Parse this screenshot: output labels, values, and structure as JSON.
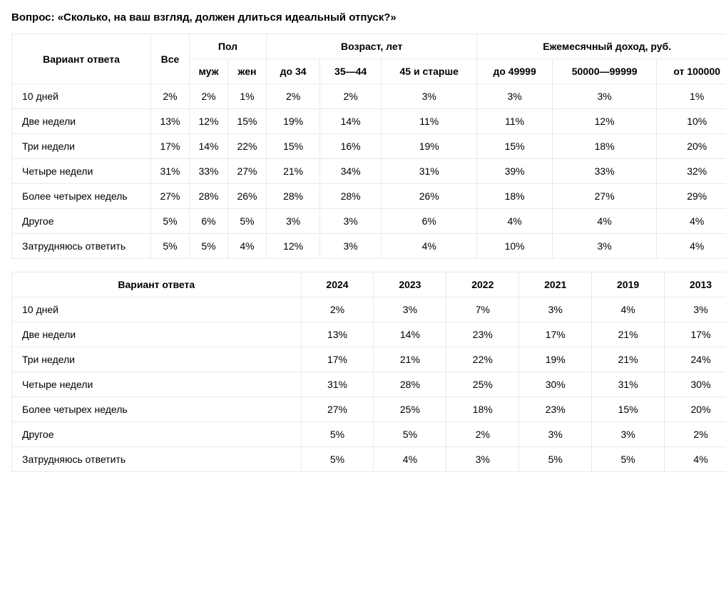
{
  "question": "Вопрос: «Сколько, на ваш взгляд, должен длиться идеальный отпуск?»",
  "table1": {
    "headers": {
      "answer": "Вариант ответа",
      "all": "Все",
      "gender": "Пол",
      "age": "Возраст, лет",
      "income": "Ежемесячный доход, руб.",
      "male": "муж",
      "female": "жен",
      "age1": "до 34",
      "age2": "35—44",
      "age3": "45 и старше",
      "inc1": "до 49999",
      "inc2": "50000—99999",
      "inc3": "от 100000"
    },
    "rows": [
      {
        "label": "10 дней",
        "all": "2%",
        "m": "2%",
        "f": "1%",
        "a1": "2%",
        "a2": "2%",
        "a3": "3%",
        "i1": "3%",
        "i2": "3%",
        "i3": "1%"
      },
      {
        "label": "Две недели",
        "all": "13%",
        "m": "12%",
        "f": "15%",
        "a1": "19%",
        "a2": "14%",
        "a3": "11%",
        "i1": "11%",
        "i2": "12%",
        "i3": "10%"
      },
      {
        "label": "Три недели",
        "all": "17%",
        "m": "14%",
        "f": "22%",
        "a1": "15%",
        "a2": "16%",
        "a3": "19%",
        "i1": "15%",
        "i2": "18%",
        "i3": "20%"
      },
      {
        "label": "Четыре недели",
        "all": "31%",
        "m": "33%",
        "f": "27%",
        "a1": "21%",
        "a2": "34%",
        "a3": "31%",
        "i1": "39%",
        "i2": "33%",
        "i3": "32%"
      },
      {
        "label": "Более четырех недель",
        "all": "27%",
        "m": "28%",
        "f": "26%",
        "a1": "28%",
        "a2": "28%",
        "a3": "26%",
        "i1": "18%",
        "i2": "27%",
        "i3": "29%"
      },
      {
        "label": "Другое",
        "all": "5%",
        "m": "6%",
        "f": "5%",
        "a1": "3%",
        "a2": "3%",
        "a3": "6%",
        "i1": "4%",
        "i2": "4%",
        "i3": "4%"
      },
      {
        "label": "Затрудняюсь ответить",
        "all": "5%",
        "m": "5%",
        "f": "4%",
        "a1": "12%",
        "a2": "3%",
        "a3": "4%",
        "i1": "10%",
        "i2": "3%",
        "i3": "4%"
      }
    ]
  },
  "table2": {
    "headers": {
      "answer": "Вариант ответа",
      "y2024": "2024",
      "y2023": "2023",
      "y2022": "2022",
      "y2021": "2021",
      "y2019": "2019",
      "y2013": "2013"
    },
    "rows": [
      {
        "label": "10 дней",
        "y2024": "2%",
        "y2023": "3%",
        "y2022": "7%",
        "y2021": "3%",
        "y2019": "4%",
        "y2013": "3%"
      },
      {
        "label": "Две недели",
        "y2024": "13%",
        "y2023": "14%",
        "y2022": "23%",
        "y2021": "17%",
        "y2019": "21%",
        "y2013": "17%"
      },
      {
        "label": "Три недели",
        "y2024": "17%",
        "y2023": "21%",
        "y2022": "22%",
        "y2021": "19%",
        "y2019": "21%",
        "y2013": "24%"
      },
      {
        "label": "Четыре недели",
        "y2024": "31%",
        "y2023": "28%",
        "y2022": "25%",
        "y2021": "30%",
        "y2019": "31%",
        "y2013": "30%"
      },
      {
        "label": "Более четырех недель",
        "y2024": "27%",
        "y2023": "25%",
        "y2022": "18%",
        "y2021": "23%",
        "y2019": "15%",
        "y2013": "20%"
      },
      {
        "label": "Другое",
        "y2024": "5%",
        "y2023": "5%",
        "y2022": "2%",
        "y2021": "3%",
        "y2019": "3%",
        "y2013": "2%"
      },
      {
        "label": "Затрудняюсь ответить",
        "y2024": "5%",
        "y2023": "4%",
        "y2022": "3%",
        "y2021": "5%",
        "y2019": "5%",
        "y2013": "4%"
      }
    ]
  }
}
